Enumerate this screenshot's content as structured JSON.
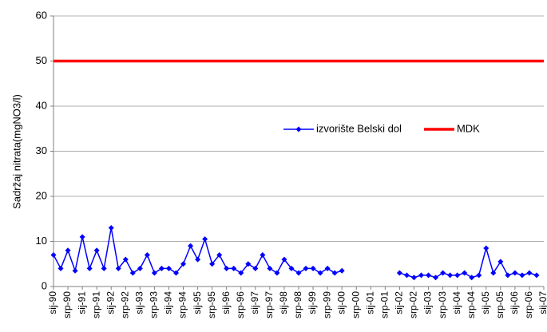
{
  "chart_data": {
    "type": "line",
    "y_label": "Sadržaj nitrata(mgNO3/l)",
    "categories": [
      "sij-90",
      null,
      "srp-90",
      null,
      "sij-91",
      null,
      "srp-91",
      null,
      "sij-92",
      null,
      "srp-92",
      null,
      "sij-93",
      null,
      "srp-93",
      null,
      "sij-94",
      null,
      "srp-94",
      null,
      "sij-95",
      null,
      "srp-95",
      null,
      "sij-96",
      null,
      "srp-96",
      null,
      "sij-97",
      null,
      "srp-97",
      null,
      "sij-98",
      null,
      "srp-98",
      null,
      "sij-99",
      null,
      "srp-99",
      null,
      "sij-00",
      null,
      "srp-00",
      null,
      "sij-01",
      null,
      "srp-01",
      null,
      "sij-02",
      null,
      "srp-02",
      null,
      "sij-03",
      null,
      "srp-03",
      null,
      "sij-04",
      null,
      "srp-04",
      null,
      "sij-05",
      null,
      "srp-05",
      null,
      "sij-06",
      null,
      "srp-06",
      null,
      "sij-07"
    ],
    "series": [
      {
        "name": "izvorište Belski dol",
        "color": "#0000ff",
        "marker": "diamond",
        "values": [
          7,
          4,
          8,
          3.5,
          11,
          4,
          8,
          4,
          13,
          4,
          6,
          3,
          4,
          7,
          3,
          4,
          4,
          3,
          5,
          9,
          6,
          10.5,
          5,
          7,
          4,
          4,
          3,
          5,
          4,
          7,
          4,
          3,
          6,
          4,
          3,
          4,
          4,
          3,
          4,
          3,
          3.5,
          null,
          null,
          null,
          null,
          null,
          null,
          null,
          3,
          2.5,
          2,
          2.5,
          2.5,
          2,
          3,
          2.5,
          2.5,
          3,
          2,
          2.5,
          8.5,
          3,
          5.5,
          2.5,
          3,
          2.5,
          3,
          2.5,
          null
        ]
      },
      {
        "name": "MDK",
        "color": "#ff0000",
        "marker": "none",
        "values": [
          50,
          50,
          50,
          50,
          50,
          50,
          50,
          50,
          50,
          50,
          50,
          50,
          50,
          50,
          50,
          50,
          50,
          50,
          50,
          50,
          50,
          50,
          50,
          50,
          50,
          50,
          50,
          50,
          50,
          50,
          50,
          50,
          50,
          50,
          50,
          50,
          50,
          50,
          50,
          50,
          50,
          50,
          50,
          50,
          50,
          50,
          50,
          50,
          50,
          50,
          50,
          50,
          50,
          50,
          50,
          50,
          50,
          50,
          50,
          50,
          50,
          50,
          50,
          50,
          50,
          50,
          50,
          50,
          50
        ]
      }
    ],
    "ylim": [
      0,
      60
    ],
    "yticks": [
      0,
      10,
      20,
      30,
      40,
      50,
      60
    ],
    "grid": true
  }
}
